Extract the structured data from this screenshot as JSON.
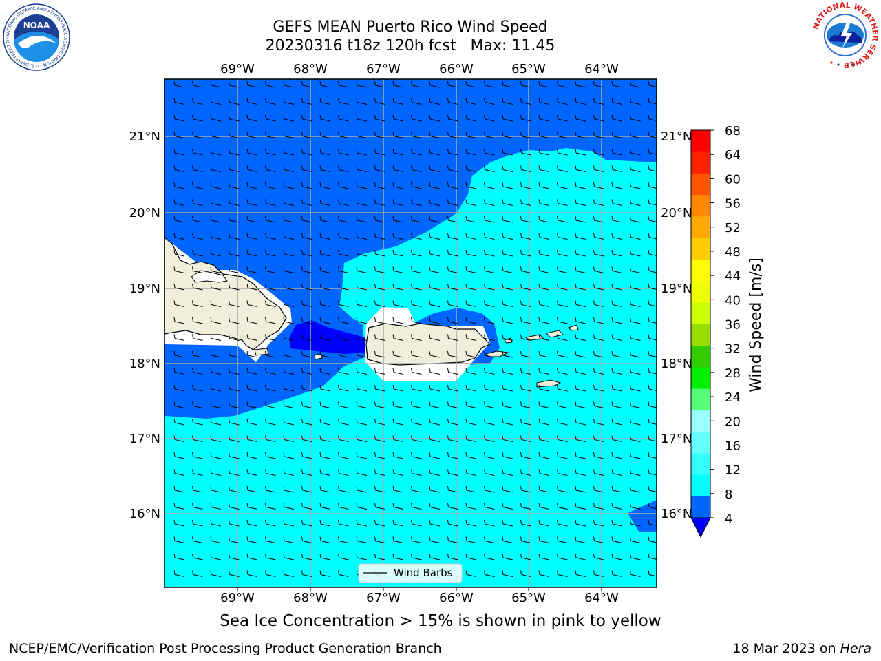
{
  "title": {
    "line1": "GEFS MEAN Puerto Rico Wind Speed",
    "line2": "20230316 t18z 120h fcst   Max: 11.45"
  },
  "caption": "Sea Ice Concentration > 15% is shown in pink to yellow",
  "footer": {
    "left": "NCEP/EMC/Verification Post Processing Product Generation Branch",
    "date": "18 Mar 2023 on ",
    "machine": "Hera"
  },
  "logos": {
    "noaa_text": "NOAA",
    "noaa_ring": "NATIONAL OCEANIC AND ATMOSPHERIC ADMINISTRATION · U.S. DEPARTMENT OF COMMERCE",
    "nws_ring": "NATIONAL WEATHER SERVICE"
  },
  "map": {
    "lon_labels": [
      "69°W",
      "68°W",
      "67°W",
      "66°W",
      "65°W",
      "64°W"
    ],
    "lat_labels": [
      "21°N",
      "20°N",
      "19°N",
      "18°N",
      "17°N",
      "16°N"
    ],
    "legend_label": "Wind Barbs"
  },
  "colorbar": {
    "label": "Wind Speed [m/s]",
    "ticks": [
      "68",
      "64",
      "60",
      "56",
      "52",
      "48",
      "44",
      "40",
      "36",
      "32",
      "28",
      "24",
      "20",
      "16",
      "12",
      "8",
      "4"
    ],
    "colors_low_to_high": [
      "#0066ff",
      "#00ffff",
      "#33ffff",
      "#66ffff",
      "#99ffff",
      "#55ff77",
      "#00ee00",
      "#33cc00",
      "#99dd00",
      "#ccff00",
      "#eeff00",
      "#ffff00",
      "#ffcc00",
      "#ffaa00",
      "#ff8800",
      "#ff5500",
      "#ff2200",
      "#ff0000"
    ],
    "under_color": "#0000ff"
  },
  "chart_data": {
    "type": "heatmap",
    "title": "GEFS MEAN Puerto Rico Wind Speed",
    "subtitle": "20230316 t18z 120h fcst   Max: 11.45",
    "colorbar_label": "Wind Speed [m/s]",
    "colorbar_ticks": [
      4,
      8,
      12,
      16,
      20,
      24,
      28,
      32,
      36,
      40,
      44,
      48,
      52,
      56,
      60,
      64,
      68
    ],
    "xlim": [
      -70,
      -63.25
    ],
    "ylim": [
      15,
      21.75
    ],
    "x_ticks": [
      -69,
      -68,
      -67,
      -66,
      -65,
      -64
    ],
    "y_ticks": [
      16,
      17,
      18,
      19,
      20,
      21
    ],
    "grid": true,
    "legend": "bottom-center",
    "max_value": 11.45
  }
}
